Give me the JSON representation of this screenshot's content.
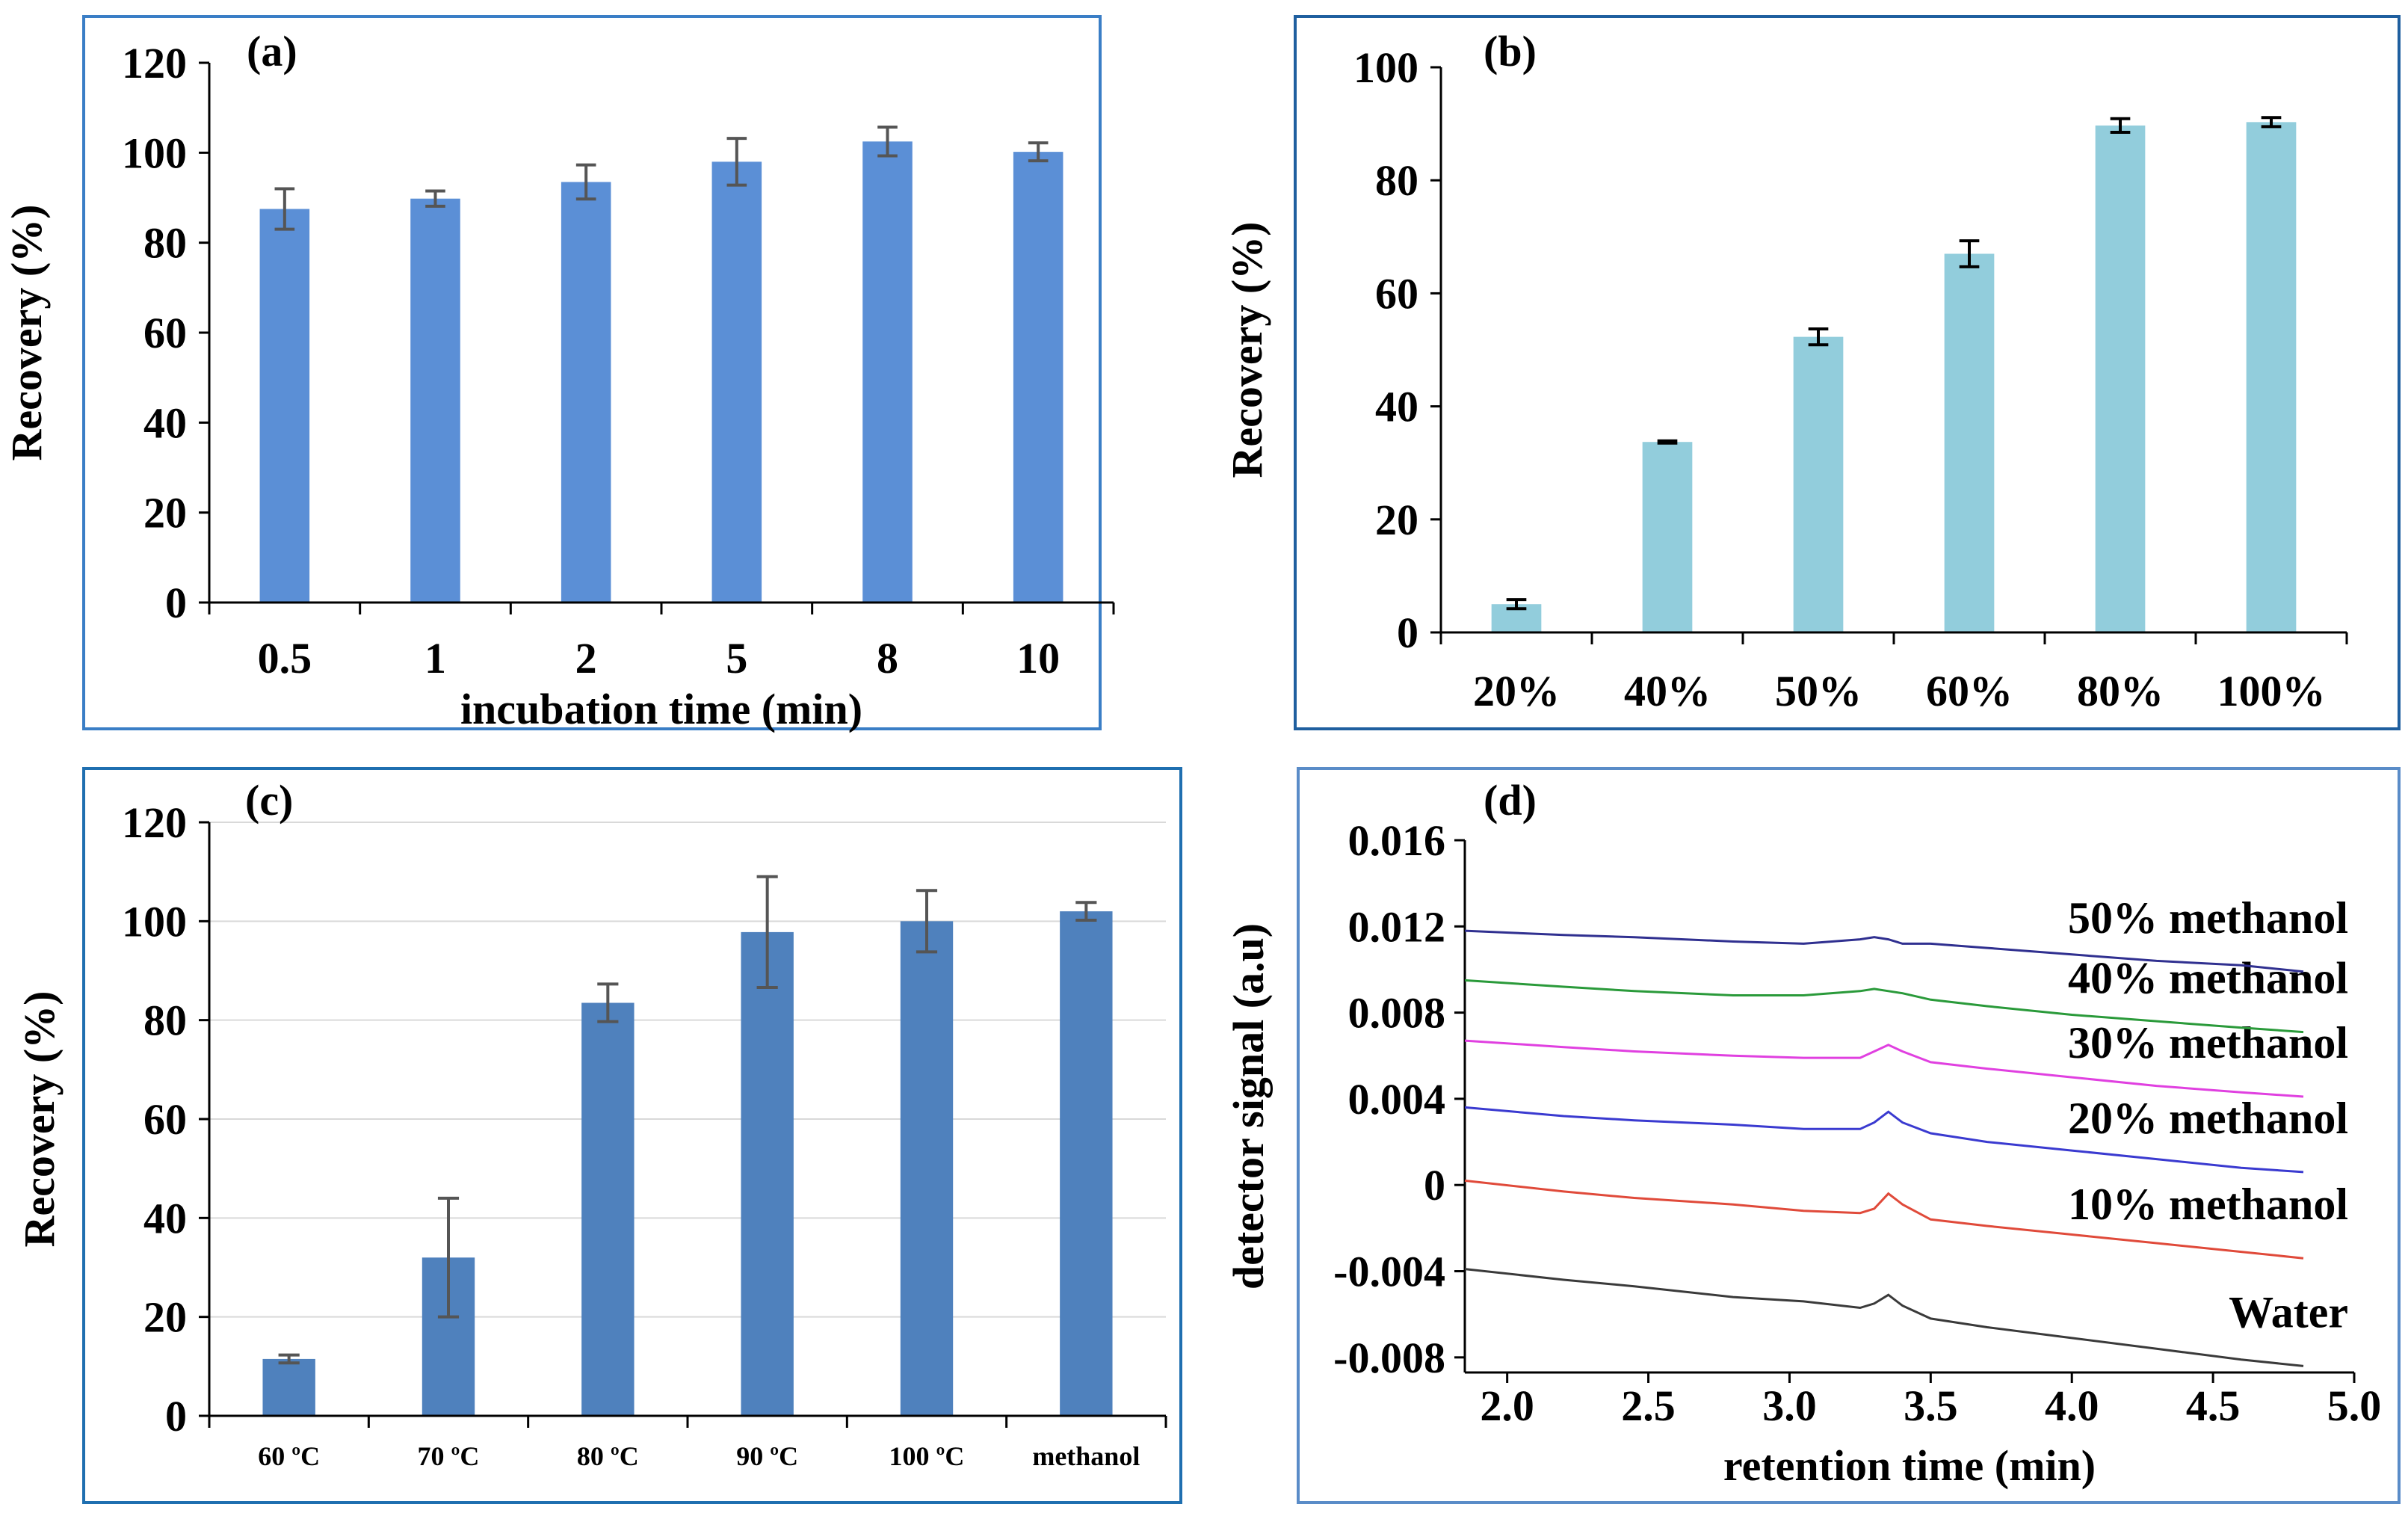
{
  "chart_data": [
    {
      "id": "a",
      "type": "bar",
      "panel_label": "(a)",
      "title": "",
      "xlabel": "incubation time (min)",
      "ylabel": "Recovery (%)",
      "categories": [
        "0.5",
        "1",
        "2",
        "5",
        "8",
        "10"
      ],
      "values": [
        87.5,
        89.8,
        93.5,
        98,
        102.5,
        100.2
      ],
      "errors": [
        4.5,
        1.7,
        3.8,
        5.2,
        3.2,
        2
      ],
      "ylim": [
        0,
        120
      ],
      "yticks": [
        0,
        20,
        40,
        60,
        80,
        100,
        120
      ],
      "grid": false,
      "bar_color": "#5b8fd6",
      "error_color": "#555555",
      "frame_color": "#3a7ec6"
    },
    {
      "id": "b",
      "type": "bar",
      "panel_label": "(b)",
      "title": "",
      "xlabel": "",
      "ylabel": "Recovery (%)",
      "categories": [
        "20%",
        "40%",
        "50%",
        "60%",
        "80%",
        "100%"
      ],
      "values": [
        5,
        33.7,
        52.3,
        67,
        89.7,
        90.3
      ],
      "errors": [
        0.8,
        0.2,
        1.4,
        2.3,
        1.2,
        0.8
      ],
      "ylim": [
        0,
        100
      ],
      "yticks": [
        0,
        20,
        40,
        60,
        80,
        100
      ],
      "grid": false,
      "bar_color": "#92cddc",
      "error_color": "#000000",
      "frame_color": "#1f5f9f"
    },
    {
      "id": "c",
      "type": "bar",
      "panel_label": "(c)",
      "title": "",
      "xlabel": "",
      "ylabel": "Recovery (%)",
      "categories": [
        "60 ºC",
        "70 ºC",
        "80 ºC",
        "90 ºC",
        "100 ºC",
        "methanol"
      ],
      "values": [
        11.5,
        32,
        83.5,
        97.8,
        100,
        102
      ],
      "errors": [
        0.8,
        12,
        3.8,
        11.2,
        6.2,
        1.8
      ],
      "ylim": [
        0,
        120
      ],
      "yticks": [
        0,
        20,
        40,
        60,
        80,
        100,
        120
      ],
      "grid": true,
      "bar_color": "#4f81bd",
      "error_color": "#555555",
      "frame_color": "#1f6fb0"
    },
    {
      "id": "d",
      "type": "line",
      "panel_label": "(d)",
      "title": "",
      "xlabel": "retention time (min)",
      "ylabel": "detector signal (a.u)",
      "xlim": [
        1.85,
        5.0
      ],
      "xticks": [
        2.0,
        2.5,
        3.0,
        3.5,
        4.0,
        4.5,
        5.0
      ],
      "xtick_labels": [
        "2.0",
        "2.5",
        "3.0",
        "3.5",
        "4.0",
        "4.5",
        "5.0"
      ],
      "ylim": [
        -0.0087,
        0.016
      ],
      "yticks": [
        -0.008,
        -0.004,
        0,
        0.004,
        0.008,
        0.012,
        0.016
      ],
      "ytick_labels": [
        "-0.008",
        "-0.004",
        "0",
        "0.004",
        "0.008",
        "0.012",
        "0.016"
      ],
      "grid": false,
      "frame_color": "#5a8cc8",
      "series": [
        {
          "name": "Water",
          "color": "#3a3a3a",
          "x": [
            1.85,
            2.2,
            2.45,
            2.8,
            3.05,
            3.25,
            3.3,
            3.35,
            3.4,
            3.5,
            3.7,
            4.0,
            4.3,
            4.6,
            4.82
          ],
          "y": [
            -0.0039,
            -0.0044,
            -0.0047,
            -0.0052,
            -0.0054,
            -0.0057,
            -0.0055,
            -0.0051,
            -0.0056,
            -0.0062,
            -0.0066,
            -0.0071,
            -0.0076,
            -0.0081,
            -0.0084
          ]
        },
        {
          "name": "10% methanol",
          "color": "#e04a3a",
          "x": [
            1.85,
            2.2,
            2.45,
            2.8,
            3.05,
            3.25,
            3.3,
            3.35,
            3.4,
            3.5,
            3.7,
            4.0,
            4.3,
            4.6,
            4.82
          ],
          "y": [
            0.0002,
            -0.0003,
            -0.0006,
            -0.0009,
            -0.0012,
            -0.0013,
            -0.0011,
            -0.0004,
            -0.0009,
            -0.0016,
            -0.0019,
            -0.0023,
            -0.0027,
            -0.0031,
            -0.0034
          ]
        },
        {
          "name": "20% methanol",
          "color": "#3a3ad0",
          "x": [
            1.85,
            2.2,
            2.45,
            2.8,
            3.05,
            3.25,
            3.3,
            3.35,
            3.4,
            3.5,
            3.7,
            4.0,
            4.3,
            4.6,
            4.82
          ],
          "y": [
            0.0036,
            0.0032,
            0.003,
            0.0028,
            0.0026,
            0.0026,
            0.0029,
            0.0034,
            0.0029,
            0.0024,
            0.002,
            0.0016,
            0.0012,
            0.0008,
            0.0006
          ]
        },
        {
          "name": "30% methanol",
          "color": "#e040e0",
          "x": [
            1.85,
            2.2,
            2.45,
            2.8,
            3.05,
            3.25,
            3.3,
            3.35,
            3.4,
            3.5,
            3.7,
            4.0,
            4.3,
            4.6,
            4.82
          ],
          "y": [
            0.0067,
            0.0064,
            0.0062,
            0.006,
            0.0059,
            0.0059,
            0.0062,
            0.0065,
            0.0062,
            0.0057,
            0.0054,
            0.005,
            0.0046,
            0.0043,
            0.0041
          ]
        },
        {
          "name": "40% methanol",
          "color": "#2a9a3a",
          "x": [
            1.85,
            2.2,
            2.45,
            2.8,
            3.05,
            3.25,
            3.3,
            3.35,
            3.4,
            3.5,
            3.7,
            4.0,
            4.3,
            4.6,
            4.82
          ],
          "y": [
            0.0095,
            0.0092,
            0.009,
            0.0088,
            0.0088,
            0.009,
            0.0091,
            0.009,
            0.0089,
            0.0086,
            0.0083,
            0.0079,
            0.0076,
            0.0073,
            0.0071
          ]
        },
        {
          "name": "50% methanol",
          "color": "#303090",
          "x": [
            1.85,
            2.2,
            2.45,
            2.8,
            3.05,
            3.25,
            3.3,
            3.35,
            3.4,
            3.5,
            3.7,
            4.0,
            4.3,
            4.6,
            4.82
          ],
          "y": [
            0.0118,
            0.0116,
            0.0115,
            0.0113,
            0.0112,
            0.0114,
            0.0115,
            0.0114,
            0.0112,
            0.0112,
            0.011,
            0.0107,
            0.0104,
            0.0102,
            0.0099
          ]
        }
      ]
    }
  ]
}
